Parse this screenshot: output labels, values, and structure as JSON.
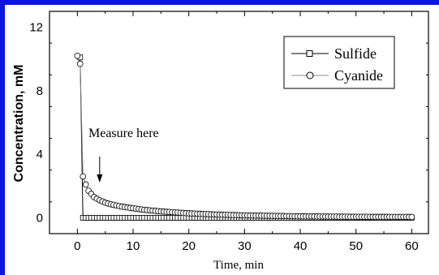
{
  "chart_data": {
    "type": "line",
    "ylabel": "Concentration, mM",
    "xlabel": "Time, min",
    "xlim": [
      -5,
      63
    ],
    "ylim": [
      -1,
      13
    ],
    "xticks": [
      0,
      10,
      20,
      30,
      40,
      50,
      60
    ],
    "yticks": [
      0,
      4,
      8,
      12
    ],
    "legend_position": "top-right",
    "annotation": {
      "text": "Measure here",
      "arrow_x": 4
    },
    "series": [
      {
        "name": "Sulfide",
        "marker": "square",
        "points": [
          [
            0.5,
            10.1
          ],
          [
            1,
            0.0
          ],
          [
            60,
            0.0
          ]
        ]
      },
      {
        "name": "Cyanide",
        "marker": "circle",
        "points": [
          [
            0,
            10.2
          ],
          [
            0.5,
            9.7
          ],
          [
            1,
            2.6
          ],
          [
            1.5,
            2.1
          ],
          [
            2,
            1.7
          ],
          [
            2.5,
            1.5
          ],
          [
            3,
            1.3
          ],
          [
            4,
            1.1
          ],
          [
            5,
            0.95
          ],
          [
            6,
            0.85
          ],
          [
            8,
            0.7
          ],
          [
            10,
            0.6
          ],
          [
            12,
            0.5
          ],
          [
            15,
            0.4
          ],
          [
            20,
            0.28
          ],
          [
            25,
            0.2
          ],
          [
            30,
            0.15
          ],
          [
            40,
            0.09
          ],
          [
            50,
            0.06
          ],
          [
            60,
            0.05
          ]
        ]
      }
    ]
  }
}
